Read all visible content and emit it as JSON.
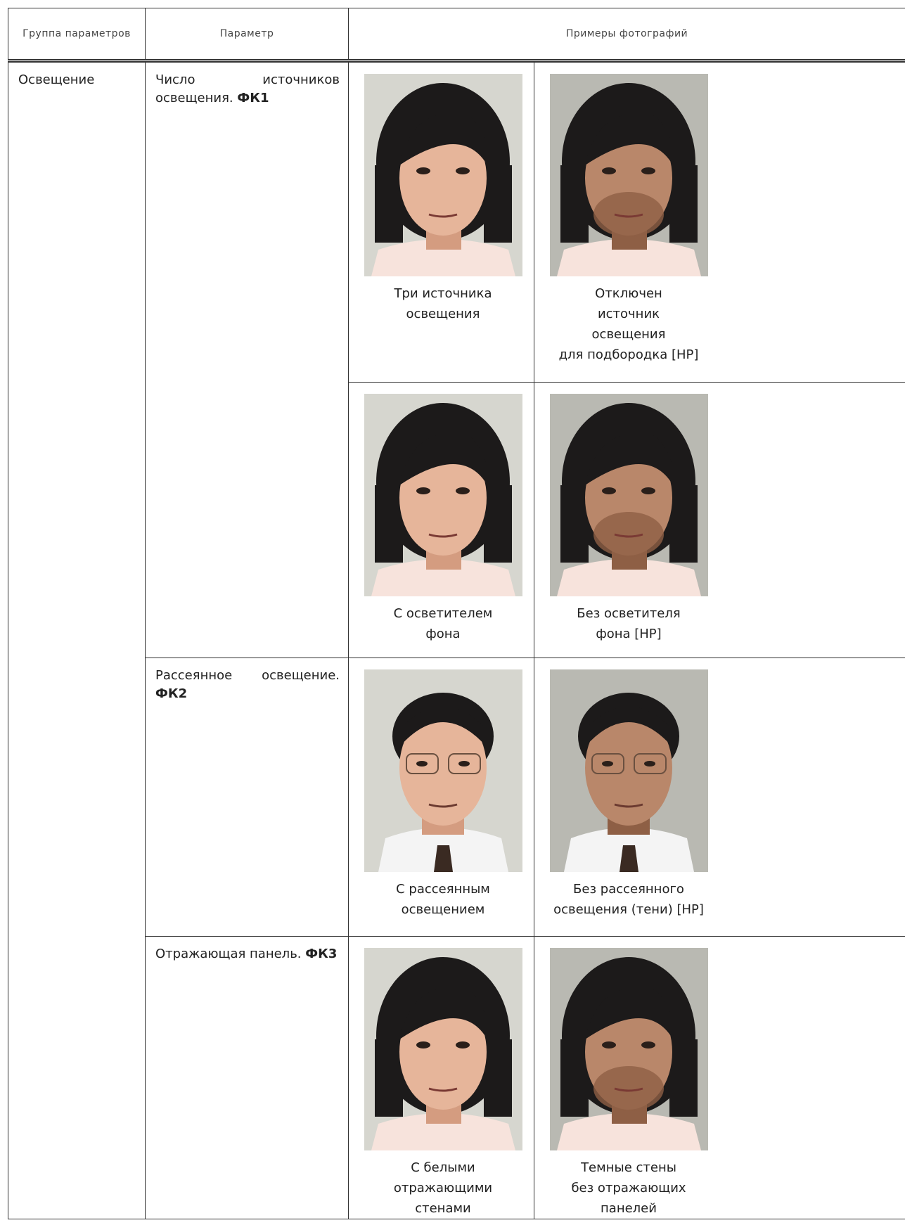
{
  "header": {
    "group": "Группа параметров",
    "parameter": "Параметр",
    "examples": "Примеры фотографий"
  },
  "rows": [
    {
      "group": "Освещение",
      "parameter": "Число источников освещения.",
      "code": "ФК1",
      "examples": [
        [
          "Три источника\nосвещения",
          "Отключен\nисточник\nосвещения\nдля подбородка [НР]"
        ],
        [
          "С осветителем\nфона",
          "Без осветителя\nфона [НР]"
        ]
      ]
    },
    {
      "parameter": "Рассеянное освещение.",
      "code": "ФК2",
      "examples": [
        [
          "С рассеянным\nосвещением",
          "Без рассеянного\nосвещения (тени) [НР]"
        ]
      ]
    },
    {
      "parameter": "Отражающая панель.",
      "code": "ФК3",
      "examples": [
        [
          "С белыми\nотражающими\nстенами",
          "Темные стены\nбез отражающих\nпанелей"
        ]
      ]
    }
  ]
}
